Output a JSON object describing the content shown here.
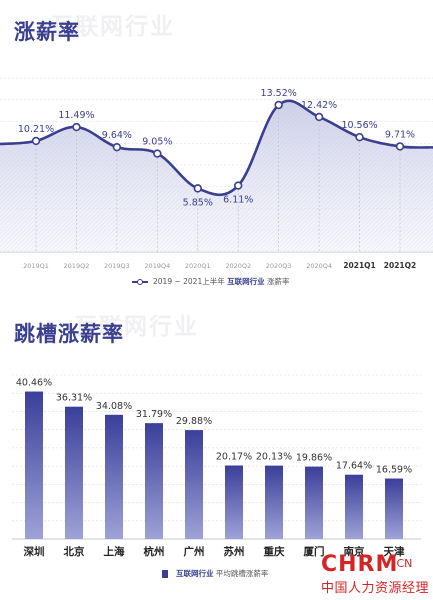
{
  "watermark": "互联网行业",
  "section1": {
    "title": "涨薪率",
    "legend": {
      "years": "2019 ~ 2021上半年",
      "brand": "互联网行业",
      "metric": "涨薪率"
    }
  },
  "section2": {
    "title": "跳槽涨薪率",
    "legend": {
      "brand": "互联网行业",
      "metric": "平均跳槽涨薪率"
    }
  },
  "logo": {
    "main": "CHRM",
    "suffix": ".CN",
    "subtitle": "中国人力资源经理"
  },
  "colors": {
    "primary": "#3a3f8f",
    "area_fill": "#e9eaf4",
    "bar_fill_top": "#3a3f9a",
    "bar_fill_bottom": "#9ea2d6",
    "logo_red": "#d42424"
  },
  "chart_data": [
    {
      "type": "area",
      "title": "涨薪率",
      "categories": [
        "2019Q1",
        "2019Q2",
        "2019Q3",
        "2019Q4",
        "2020Q1",
        "2020Q2",
        "2020Q3",
        "2020Q4",
        "2021Q1",
        "2021Q2"
      ],
      "values": [
        10.21,
        11.49,
        9.64,
        9.05,
        5.85,
        6.11,
        13.52,
        12.42,
        10.56,
        9.71
      ],
      "labels": [
        "10.21%",
        "11.49%",
        "9.64%",
        "9.05%",
        "5.85%",
        "6.11%",
        "13.52%",
        "12.42%",
        "10.56%",
        "9.71%"
      ],
      "series_name": "2019 ~ 2021上半年 互联网行业 涨薪率",
      "ylim": [
        0,
        16
      ],
      "grid": true,
      "legend_position": "bottom-center"
    },
    {
      "type": "bar",
      "title": "跳槽涨薪率",
      "categories": [
        "深圳",
        "北京",
        "上海",
        "杭州",
        "广州",
        "苏州",
        "重庆",
        "厦门",
        "南京",
        "天津"
      ],
      "values": [
        40.46,
        36.31,
        34.08,
        31.79,
        29.88,
        20.17,
        20.13,
        19.86,
        17.64,
        16.59
      ],
      "labels": [
        "40.46%",
        "36.31%",
        "34.08%",
        "31.79%",
        "29.88%",
        "20.17%",
        "20.13%",
        "19.86%",
        "17.64%",
        "16.59%"
      ],
      "series_name": "互联网行业 平均跳槽涨薪率",
      "ylim": [
        0,
        45
      ],
      "grid": true,
      "legend_position": "bottom-center"
    }
  ]
}
